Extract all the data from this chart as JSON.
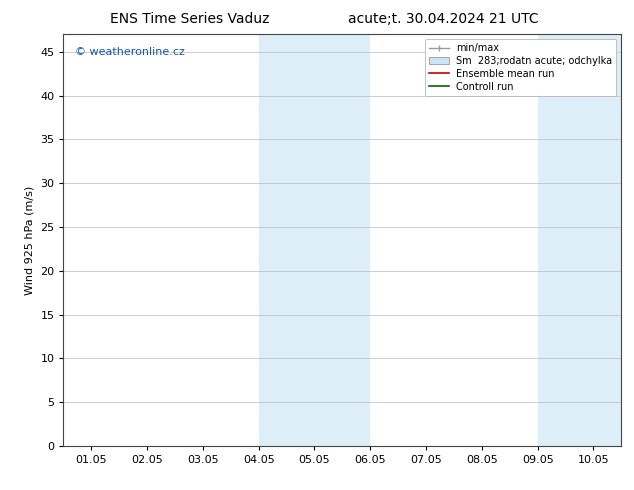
{
  "title_left": "ENS Time Series Vaduz",
  "title_right": "acute;t. 30.04.2024 21 UTC",
  "ylabel": "Wind 925 hPa (m/s)",
  "watermark": "© weatheronline.cz",
  "x_labels": [
    "01.05",
    "02.05",
    "03.05",
    "04.05",
    "05.05",
    "06.05",
    "07.05",
    "08.05",
    "09.05",
    "10.05"
  ],
  "x_tick_positions": [
    0,
    1,
    2,
    3,
    4,
    5,
    6,
    7,
    8,
    9
  ],
  "xlim": [
    -0.5,
    9.5
  ],
  "ylim": [
    0,
    47
  ],
  "yticks": [
    0,
    5,
    10,
    15,
    20,
    25,
    30,
    35,
    40,
    45
  ],
  "shaded_regions": [
    {
      "xmin": 3.0,
      "xmax": 5.0,
      "color": "#ddeef8"
    },
    {
      "xmin": 8.0,
      "xmax": 9.5,
      "color": "#ddeef8"
    }
  ],
  "legend_entries": [
    {
      "label": "min/max",
      "type": "minmax",
      "color": "#999999"
    },
    {
      "label": "Sm  283;rodatn acute; odchylka",
      "type": "patch",
      "color": "#cce4f5"
    },
    {
      "label": "Ensemble mean run",
      "type": "line",
      "color": "#cc0000"
    },
    {
      "label": "Controll run",
      "type": "line",
      "color": "#006600"
    }
  ],
  "bg_color": "#ffffff",
  "plot_bg_color": "#ffffff",
  "grid_color": "#bbbbbb",
  "title_fontsize": 10,
  "axis_label_fontsize": 8,
  "tick_fontsize": 8,
  "watermark_color": "#1155aa",
  "spine_color": "#444444"
}
